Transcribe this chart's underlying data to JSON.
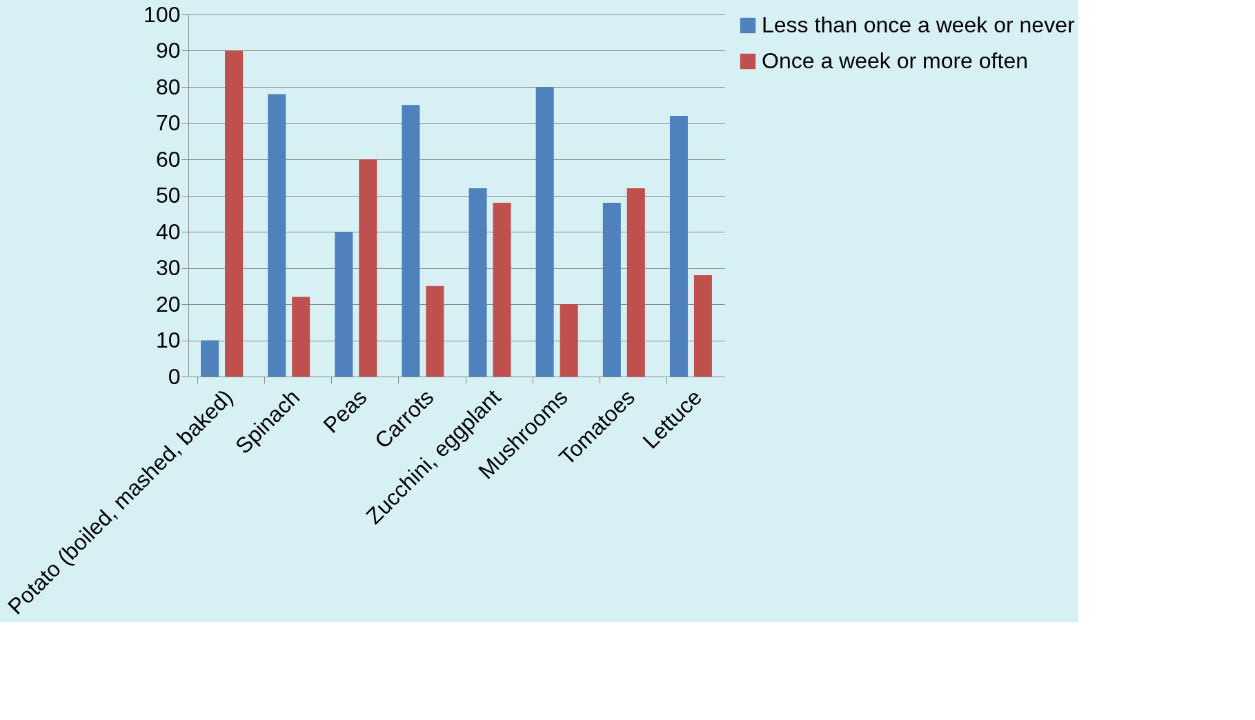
{
  "chart_data": {
    "type": "bar",
    "categories": [
      "Potato (boiled, mashed, baked)",
      "Spinach",
      "Peas",
      "Carrots",
      "Zucchini, eggplant",
      "Mushrooms",
      "Tomatoes",
      "Lettuce"
    ],
    "series": [
      {
        "name": "Less than once a week or never",
        "color": "#4f81bd",
        "values": [
          10,
          78,
          40,
          75,
          52,
          80,
          48,
          72
        ]
      },
      {
        "name": "Once a week or more often",
        "color": "#c0504d",
        "values": [
          90,
          22,
          60,
          25,
          48,
          20,
          52,
          28
        ]
      }
    ],
    "ylim": [
      0,
      100
    ],
    "yticks": [
      0,
      10,
      20,
      30,
      40,
      50,
      60,
      70,
      80,
      90,
      100
    ],
    "grid": "y",
    "legend": "right"
  }
}
